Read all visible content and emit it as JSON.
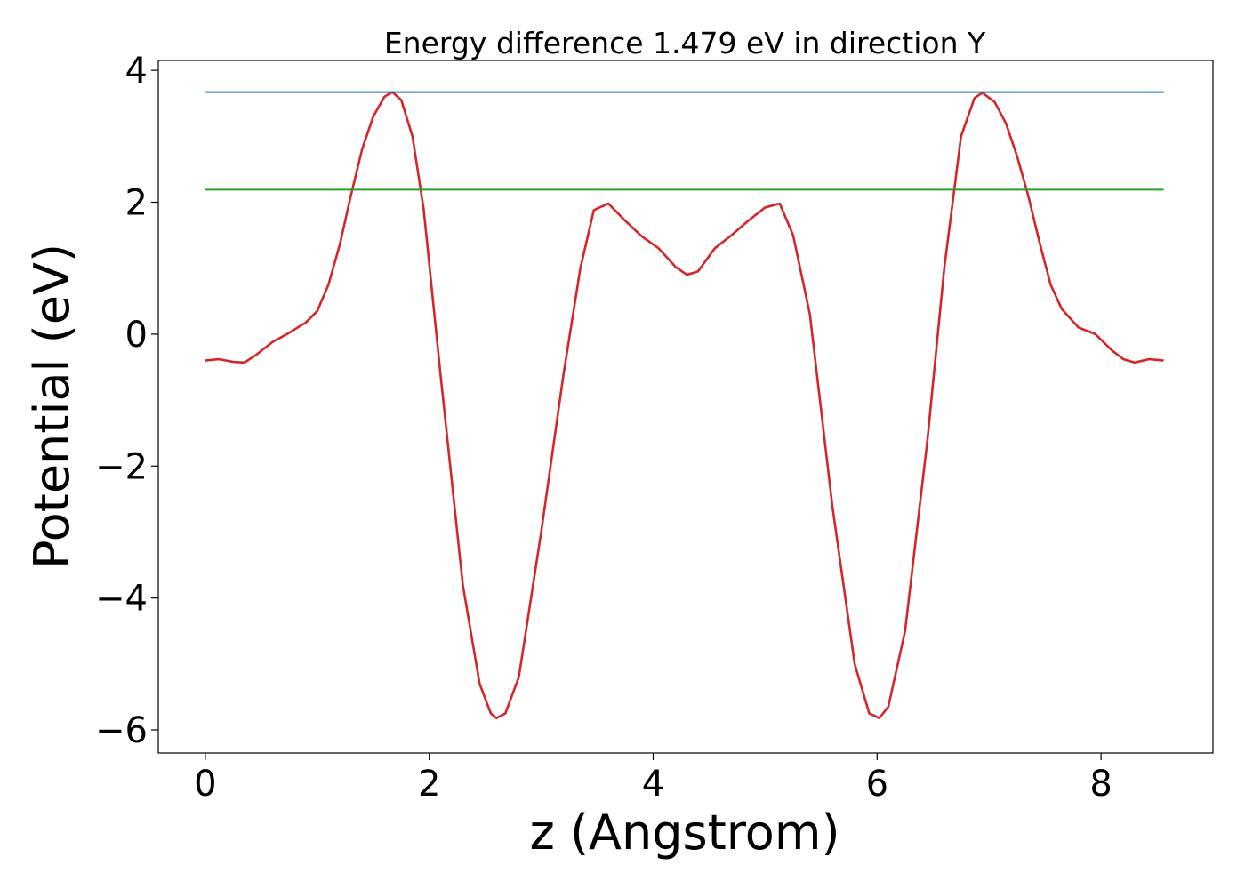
{
  "chart_data": {
    "type": "line",
    "title": "Energy difference 1.479 eV in direction Y",
    "xlabel": "z (Angstrom)",
    "ylabel": "Potential (eV)",
    "xlim": [
      -0.42,
      9.0
    ],
    "ylim": [
      -6.35,
      4.15
    ],
    "xticks": [
      0,
      2,
      4,
      6,
      8
    ],
    "xtick_labels": [
      "0",
      "2",
      "4",
      "6",
      "8"
    ],
    "yticks": [
      -6,
      -4,
      -2,
      0,
      2,
      4
    ],
    "ytick_labels": [
      "−6",
      "−4",
      "−2",
      "0",
      "2",
      "4"
    ],
    "grid": false,
    "series": [
      {
        "color": "#d62728",
        "x": [
          0,
          0.12,
          0.25,
          0.35,
          0.45,
          0.6,
          0.75,
          0.9,
          1.0,
          1.1,
          1.2,
          1.3,
          1.4,
          1.5,
          1.6,
          1.67,
          1.75,
          1.85,
          1.95,
          2.1,
          2.3,
          2.45,
          2.55,
          2.6,
          2.68,
          2.8,
          3.0,
          3.2,
          3.35,
          3.47,
          3.6,
          3.75,
          3.9,
          4.05,
          4.2,
          4.3,
          4.4,
          4.55,
          4.7,
          4.85,
          5.0,
          5.13,
          5.25,
          5.4,
          5.6,
          5.8,
          5.93,
          6.02,
          6.1,
          6.25,
          6.45,
          6.6,
          6.75,
          6.87,
          6.94,
          7.05,
          7.15,
          7.25,
          7.35,
          7.45,
          7.55,
          7.65,
          7.8,
          7.95,
          8.1,
          8.2,
          8.3,
          8.43,
          8.56
        ],
        "y": [
          -0.4,
          -0.38,
          -0.42,
          -0.43,
          -0.32,
          -0.12,
          0.02,
          0.18,
          0.35,
          0.75,
          1.35,
          2.1,
          2.8,
          3.3,
          3.6,
          3.67,
          3.55,
          3.0,
          1.9,
          -0.6,
          -3.8,
          -5.3,
          -5.75,
          -5.82,
          -5.75,
          -5.2,
          -3.0,
          -0.6,
          1.0,
          1.88,
          1.98,
          1.72,
          1.48,
          1.3,
          1.02,
          0.9,
          0.95,
          1.3,
          1.5,
          1.72,
          1.92,
          1.98,
          1.5,
          0.3,
          -2.6,
          -5.0,
          -5.75,
          -5.82,
          -5.65,
          -4.5,
          -1.6,
          1.0,
          3.0,
          3.58,
          3.66,
          3.52,
          3.2,
          2.7,
          2.1,
          1.4,
          0.75,
          0.38,
          0.1,
          0.0,
          -0.25,
          -0.38,
          -0.43,
          -0.38,
          -0.4
        ]
      },
      {
        "color": "#1f77b4",
        "x": [
          0,
          8.56
        ],
        "y": [
          3.67,
          3.67
        ]
      },
      {
        "color": "#2ca02c",
        "x": [
          0,
          8.56
        ],
        "y": [
          2.19,
          2.19
        ]
      }
    ]
  }
}
